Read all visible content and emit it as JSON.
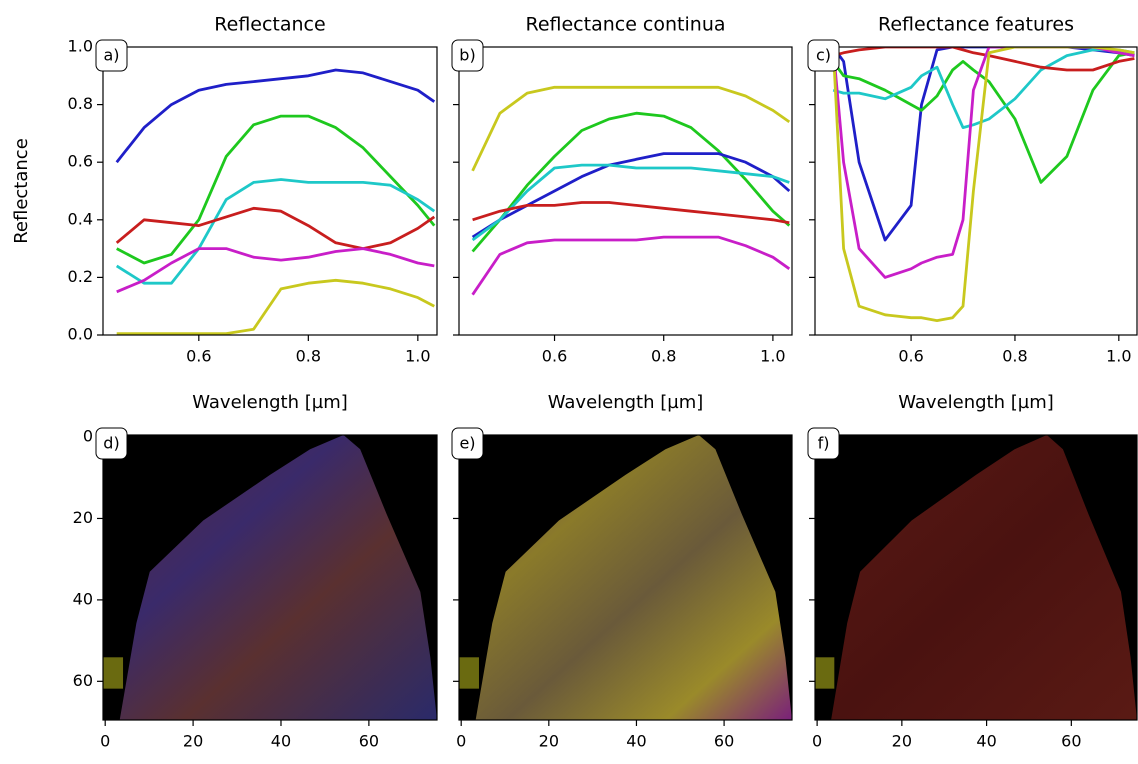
{
  "chart_data": [
    {
      "type": "line",
      "title": "Reflectance",
      "panel_label": "a)",
      "xlabel": "Wavelength [µm]",
      "ylabel": "Reflectance",
      "x": [
        0.45,
        0.5,
        0.55,
        0.6,
        0.65,
        0.7,
        0.75,
        0.8,
        0.85,
        0.9,
        0.95,
        1.0,
        1.03
      ],
      "series": [
        {
          "color": "#1f1fc8",
          "values": [
            0.6,
            0.72,
            0.8,
            0.85,
            0.87,
            0.88,
            0.89,
            0.9,
            0.92,
            0.91,
            0.88,
            0.85,
            0.81
          ]
        },
        {
          "color": "#1ec81e",
          "values": [
            0.3,
            0.25,
            0.28,
            0.4,
            0.62,
            0.73,
            0.76,
            0.76,
            0.72,
            0.65,
            0.55,
            0.45,
            0.38
          ]
        },
        {
          "color": "#1ec8c8",
          "values": [
            0.24,
            0.18,
            0.18,
            0.3,
            0.47,
            0.53,
            0.54,
            0.53,
            0.53,
            0.53,
            0.52,
            0.47,
            0.43
          ]
        },
        {
          "color": "#c81e1e",
          "values": [
            0.32,
            0.4,
            0.39,
            0.38,
            0.41,
            0.44,
            0.43,
            0.38,
            0.32,
            0.3,
            0.32,
            0.37,
            0.41
          ]
        },
        {
          "color": "#c81ec8",
          "values": [
            0.15,
            0.19,
            0.25,
            0.3,
            0.3,
            0.27,
            0.26,
            0.27,
            0.29,
            0.3,
            0.28,
            0.25,
            0.24
          ]
        },
        {
          "color": "#c8c81e",
          "values": [
            0.005,
            0.005,
            0.005,
            0.005,
            0.005,
            0.02,
            0.16,
            0.18,
            0.19,
            0.18,
            0.16,
            0.13,
            0.1
          ]
        }
      ],
      "xlim": [
        0.425,
        1.035
      ],
      "ylim": [
        0,
        1
      ],
      "xticks": [
        0.6,
        0.8,
        {
          "value": 1.0,
          "label": "1.0"
        }
      ],
      "yticks": [
        {
          "value": 0,
          "label": "0.0"
        },
        0.2,
        0.4,
        0.6,
        0.8,
        {
          "value": 1.0,
          "label": "1.0"
        }
      ]
    },
    {
      "type": "line",
      "title": "Reflectance continua",
      "panel_label": "b)",
      "xlabel": "Wavelength [µm]",
      "x": [
        0.45,
        0.5,
        0.55,
        0.6,
        0.65,
        0.7,
        0.75,
        0.8,
        0.85,
        0.9,
        0.95,
        1.0,
        1.03
      ],
      "series": [
        {
          "color": "#c8c81e",
          "values": [
            0.57,
            0.77,
            0.84,
            0.86,
            0.86,
            0.86,
            0.86,
            0.86,
            0.86,
            0.86,
            0.83,
            0.78,
            0.74
          ]
        },
        {
          "color": "#1ec81e",
          "values": [
            0.29,
            0.4,
            0.52,
            0.62,
            0.71,
            0.75,
            0.77,
            0.76,
            0.72,
            0.64,
            0.54,
            0.43,
            0.38
          ]
        },
        {
          "color": "#1f1fc8",
          "values": [
            0.34,
            0.4,
            0.45,
            0.5,
            0.55,
            0.59,
            0.61,
            0.63,
            0.63,
            0.63,
            0.6,
            0.55,
            0.5
          ]
        },
        {
          "color": "#1ec8c8",
          "values": [
            0.33,
            0.4,
            0.5,
            0.58,
            0.59,
            0.59,
            0.58,
            0.58,
            0.58,
            0.57,
            0.56,
            0.55,
            0.53
          ]
        },
        {
          "color": "#c81e1e",
          "values": [
            0.4,
            0.43,
            0.45,
            0.45,
            0.46,
            0.46,
            0.45,
            0.44,
            0.43,
            0.42,
            0.41,
            0.4,
            0.39
          ]
        },
        {
          "color": "#c81ec8",
          "values": [
            0.14,
            0.28,
            0.32,
            0.33,
            0.33,
            0.33,
            0.33,
            0.34,
            0.34,
            0.34,
            0.31,
            0.27,
            0.23
          ]
        }
      ],
      "xlim": [
        0.425,
        1.035
      ],
      "ylim": [
        0,
        1
      ],
      "xticks": [
        0.6,
        0.8,
        {
          "value": 1.0,
          "label": "1.0"
        }
      ],
      "yticks": [
        0,
        0.2,
        0.4,
        0.6,
        0.8,
        1.0
      ]
    },
    {
      "type": "line",
      "title": "Reflectance features",
      "panel_label": "c)",
      "xlabel": "Wavelength [µm]",
      "x": [
        0.45,
        0.47,
        0.5,
        0.55,
        0.6,
        0.62,
        0.65,
        0.68,
        0.7,
        0.72,
        0.75,
        0.8,
        0.85,
        0.9,
        0.95,
        1.0,
        1.03
      ],
      "series": [
        {
          "color": "#1f1fc8",
          "values": [
            1.0,
            0.95,
            0.6,
            0.33,
            0.45,
            0.8,
            0.99,
            1.0,
            1.0,
            1.0,
            1.0,
            1.0,
            1.0,
            1.0,
            0.99,
            0.98,
            0.97
          ]
        },
        {
          "color": "#1ec81e",
          "values": [
            0.95,
            0.9,
            0.89,
            0.85,
            0.8,
            0.78,
            0.83,
            0.92,
            0.95,
            0.92,
            0.88,
            0.75,
            0.53,
            0.62,
            0.85,
            0.97,
            0.98
          ]
        },
        {
          "color": "#1ec8c8",
          "values": [
            0.85,
            0.84,
            0.84,
            0.82,
            0.86,
            0.9,
            0.93,
            0.8,
            0.72,
            0.73,
            0.75,
            0.82,
            0.92,
            0.97,
            0.99,
            0.99,
            0.98
          ]
        },
        {
          "color": "#c81e1e",
          "values": [
            0.97,
            0.98,
            0.99,
            1.0,
            1.0,
            1.0,
            1.0,
            1.0,
            0.99,
            0.98,
            0.97,
            0.95,
            0.93,
            0.92,
            0.92,
            0.95,
            0.96
          ]
        },
        {
          "color": "#c81ec8",
          "values": [
            1.0,
            0.6,
            0.3,
            0.2,
            0.23,
            0.25,
            0.27,
            0.28,
            0.4,
            0.85,
            1.0,
            1.0,
            1.0,
            1.0,
            1.0,
            0.98,
            0.97
          ]
        },
        {
          "color": "#c8c81e",
          "values": [
            1.0,
            0.3,
            0.1,
            0.07,
            0.06,
            0.06,
            0.05,
            0.06,
            0.1,
            0.5,
            0.98,
            1.0,
            1.0,
            1.0,
            1.0,
            0.99,
            0.98
          ]
        }
      ],
      "xlim": [
        0.415,
        1.035
      ],
      "ylim": [
        0,
        1
      ],
      "xticks": [
        0.6,
        0.8,
        {
          "value": 1.0,
          "label": "1.0"
        }
      ],
      "yticks": [
        0,
        0.2,
        0.4,
        0.6,
        0.8,
        1.0
      ]
    },
    {
      "type": "image",
      "panel_label": "d)",
      "xlim": [
        -0.5,
        75.5
      ],
      "ylim": [
        69.5,
        -0.5
      ],
      "xticks": [
        0,
        20,
        40,
        60
      ],
      "yticks": [
        0,
        20,
        40,
        60
      ]
    },
    {
      "type": "image",
      "panel_label": "e)",
      "xlim": [
        -0.5,
        75.5
      ],
      "ylim": [
        69.5,
        -0.5
      ],
      "xticks": [
        0,
        20,
        40,
        60
      ],
      "yticks": [
        0,
        20,
        40,
        60
      ]
    },
    {
      "type": "image",
      "panel_label": "f)",
      "xlim": [
        -0.5,
        75.5
      ],
      "ylim": [
        69.5,
        -0.5
      ],
      "xticks": [
        0,
        20,
        40,
        60
      ],
      "yticks": [
        0,
        20,
        40,
        60
      ]
    }
  ]
}
